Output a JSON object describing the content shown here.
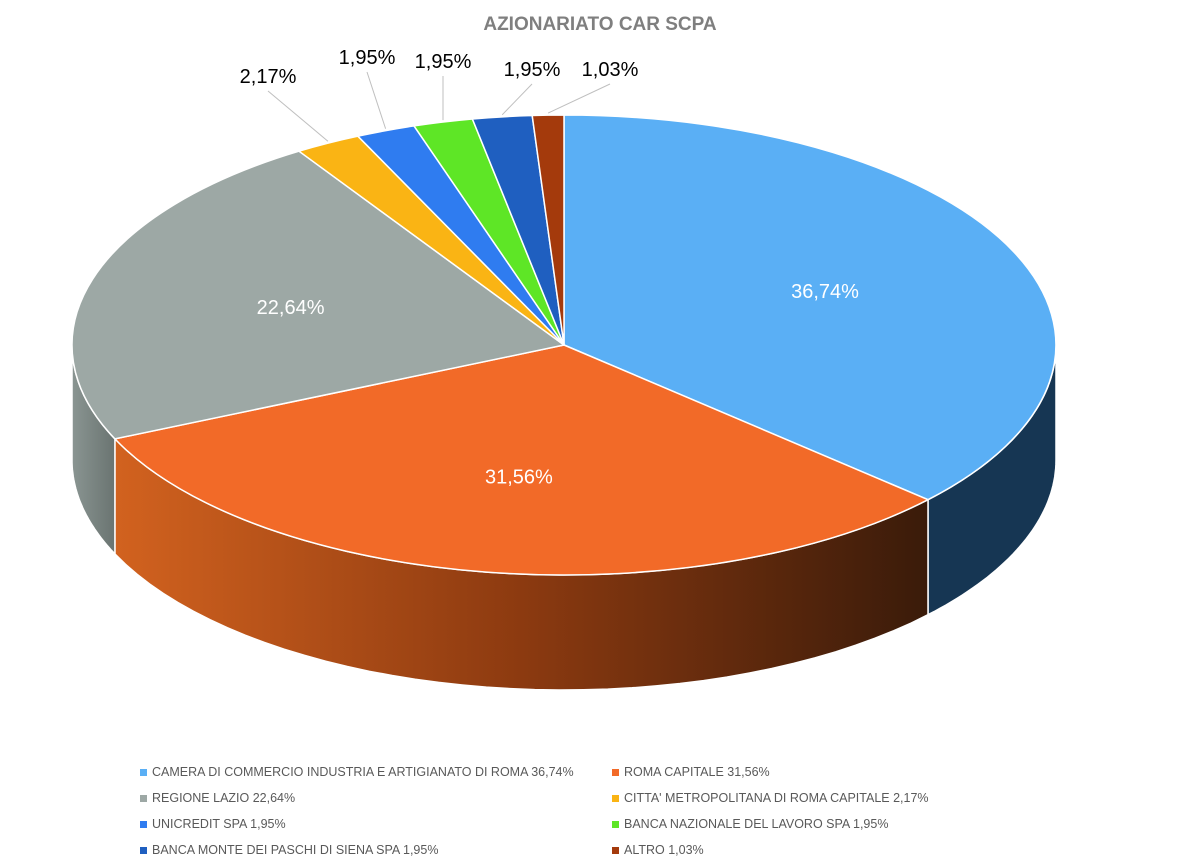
{
  "chart_data": {
    "type": "pie",
    "title": "AZIONARIATO CAR SCPA",
    "slices": [
      {
        "label": "CAMERA DI COMMERCIO INDUSTRIA E ARTIGIANATO DI ROMA 36,74%",
        "value": 36.74,
        "data_label": "36,74%",
        "color": "#5aaff5",
        "side_color": "#163653"
      },
      {
        "label": "ROMA CAPITALE 31,56%",
        "value": 31.56,
        "data_label": "31,56%",
        "color": "#f26a28",
        "side_color": "#c0561f"
      },
      {
        "label": "REGIONE LAZIO 22,64%",
        "value": 22.64,
        "data_label": "22,64%",
        "color": "#9da8a5",
        "side_color": "#7c8784"
      },
      {
        "label": "CITTA' METROPOLITANA DI ROMA CAPITALE 2,17%",
        "value": 2.17,
        "data_label": "2,17%",
        "color": "#fab414",
        "side_color": "#c08a10"
      },
      {
        "label": "UNICREDIT SPA 1,95%",
        "value": 1.95,
        "data_label": "1,95%",
        "color": "#2f7cf0",
        "side_color": "#2460b8"
      },
      {
        "label": "BANCA NAZIONALE DEL LAVORO SPA 1,95%",
        "value": 1.95,
        "data_label": "1,95%",
        "color": "#5ee626",
        "side_color": "#48b01d"
      },
      {
        "label": "BANCA MONTE DEI PASCHI DI SIENA SPA 1,95%",
        "value": 1.95,
        "data_label": "1,95%",
        "color": "#1f5fc0",
        "side_color": "#184a93"
      },
      {
        "label": "ALTRO 1,03%",
        "value": 1.03,
        "data_label": "1,03%",
        "color": "#a43a0c",
        "side_color": "#7a2b09"
      }
    ],
    "legend_position": "bottom"
  }
}
